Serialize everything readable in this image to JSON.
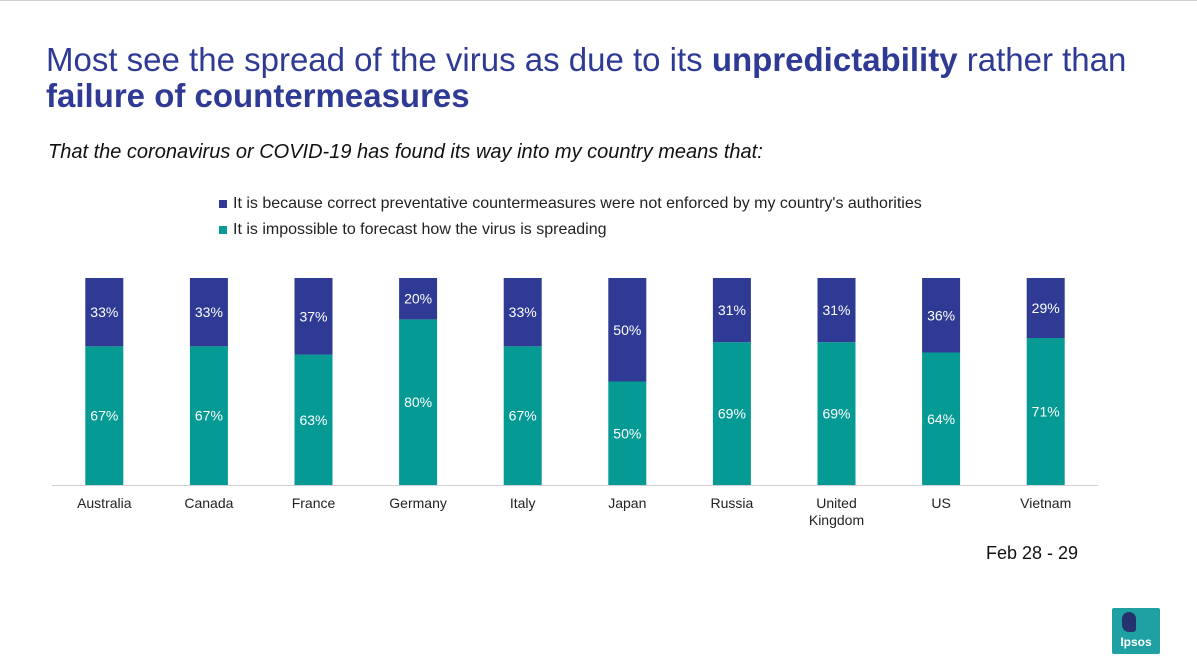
{
  "header": {
    "title_part1": "Most see the spread of the virus as due to its ",
    "title_bold1": "unpredictability",
    "title_part2": " rather than ",
    "title_bold2": "failure of countermeasures",
    "subtitle": "That the coronavirus or COVID-19 has found its way into my country means that:"
  },
  "colors": {
    "countermeasures": "#2e3a94",
    "impossible": "#069a94",
    "title": "#2e3a94"
  },
  "chart_data": {
    "type": "bar",
    "stacked": true,
    "normalized_percent": true,
    "categories": [
      "Australia",
      "Canada",
      "France",
      "Germany",
      "Italy",
      "Japan",
      "Russia",
      "United Kingdom",
      "US",
      "Vietnam"
    ],
    "series": [
      {
        "name": "It is because correct preventative countermeasures were not enforced by my country's authorities",
        "color": "#2e3a94",
        "values": [
          33,
          33,
          37,
          20,
          33,
          50,
          31,
          31,
          36,
          29
        ],
        "labels": [
          "33%",
          "33%",
          "37%",
          "20%",
          "33%",
          "50%",
          "31%",
          "31%",
          "36%",
          "29%"
        ]
      },
      {
        "name": "It is impossible to forecast how the virus is spreading",
        "color": "#069a94",
        "values": [
          67,
          67,
          63,
          80,
          67,
          50,
          69,
          69,
          64,
          71
        ],
        "labels": [
          "67%",
          "67%",
          "63%",
          "80%",
          "67%",
          "50%",
          "69%",
          "69%",
          "64%",
          "71%"
        ]
      }
    ],
    "ylim": [
      0,
      100
    ],
    "legend_position": "top",
    "grid": false
  },
  "footer": {
    "date": "Feb 28 - 29",
    "logo": "Ipsos"
  }
}
